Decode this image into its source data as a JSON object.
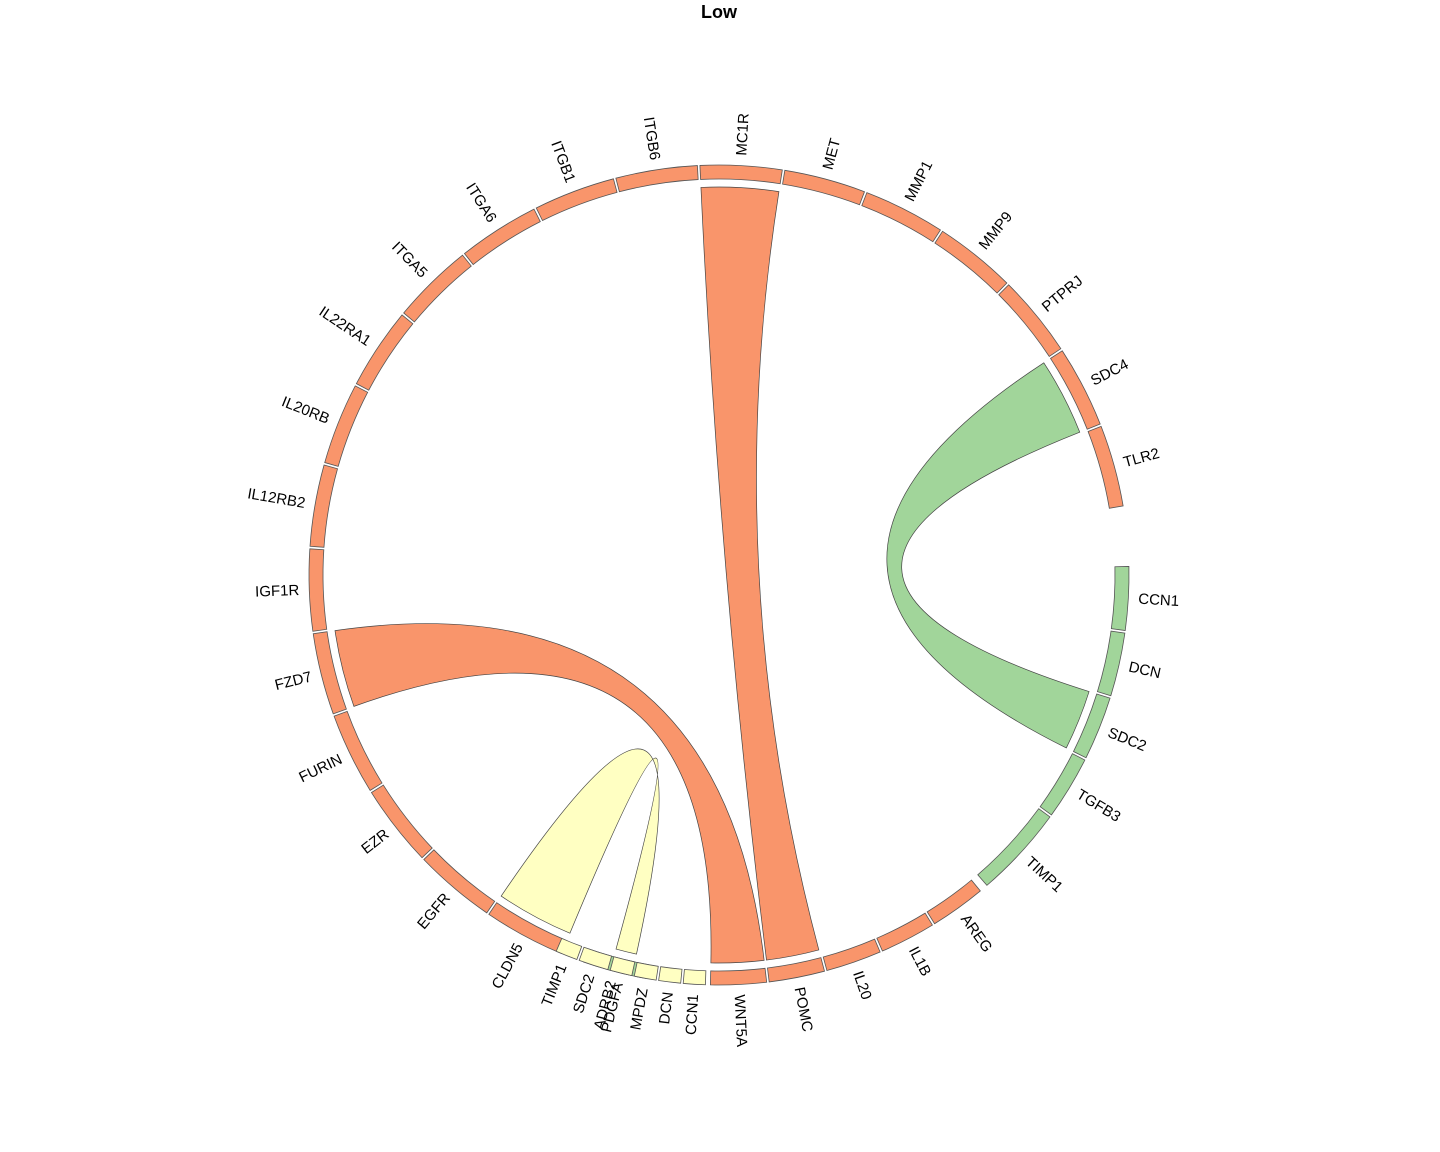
{
  "title": "Low",
  "colors": {
    "salmon": "#F9956B",
    "green": "#A1D59A",
    "yellow": "#FFFFC2",
    "orange_edge": "#E8612C"
  },
  "chart_data": {
    "type": "chord",
    "groups": [
      {
        "name": "salmon",
        "color": "#F9956B",
        "sectors": [
          "WNT5A",
          "POMC",
          "IL20",
          "IL1B",
          "AREG"
        ]
      },
      {
        "name": "green",
        "color": "#A1D59A",
        "sectors": [
          "TIMP1",
          "TGFB3",
          "SDC2",
          "DCN",
          "CCN1"
        ]
      },
      {
        "name": "salmon",
        "color": "#F9956B",
        "sectors": [
          "TLR2",
          "SDC4",
          "PTPRJ",
          "MMP9",
          "MMP1",
          "MET",
          "MC1R",
          "ITGB6",
          "ITGB1",
          "ITGA6",
          "ITGA5",
          "IL22RA1",
          "IL20RB",
          "IL12RB2",
          "IGF1R",
          "FZD7",
          "FURIN",
          "EZR",
          "EGFR",
          "CLDN5"
        ]
      },
      {
        "name": "green",
        "color": "#A1D59A",
        "sectors": [
          "ADRB2"
        ]
      },
      {
        "name": "yellow",
        "color": "#FFFFC2",
        "sectors": [
          "TIMP1",
          "SDC2",
          "PDGFA",
          "MPDZ",
          "DCN",
          "CCN1"
        ]
      }
    ],
    "links": [
      {
        "from": "WNT5A",
        "to": "FZD7",
        "color": "#F9956B"
      },
      {
        "from": "POMC",
        "to": "MC1R",
        "color": "#F9956B"
      },
      {
        "from": "SDC2",
        "to": "SDC4",
        "color": "#A1D59A"
      },
      {
        "from": "PDGFA",
        "to": "CLDN5",
        "color": "#FFFFC2"
      }
    ]
  }
}
